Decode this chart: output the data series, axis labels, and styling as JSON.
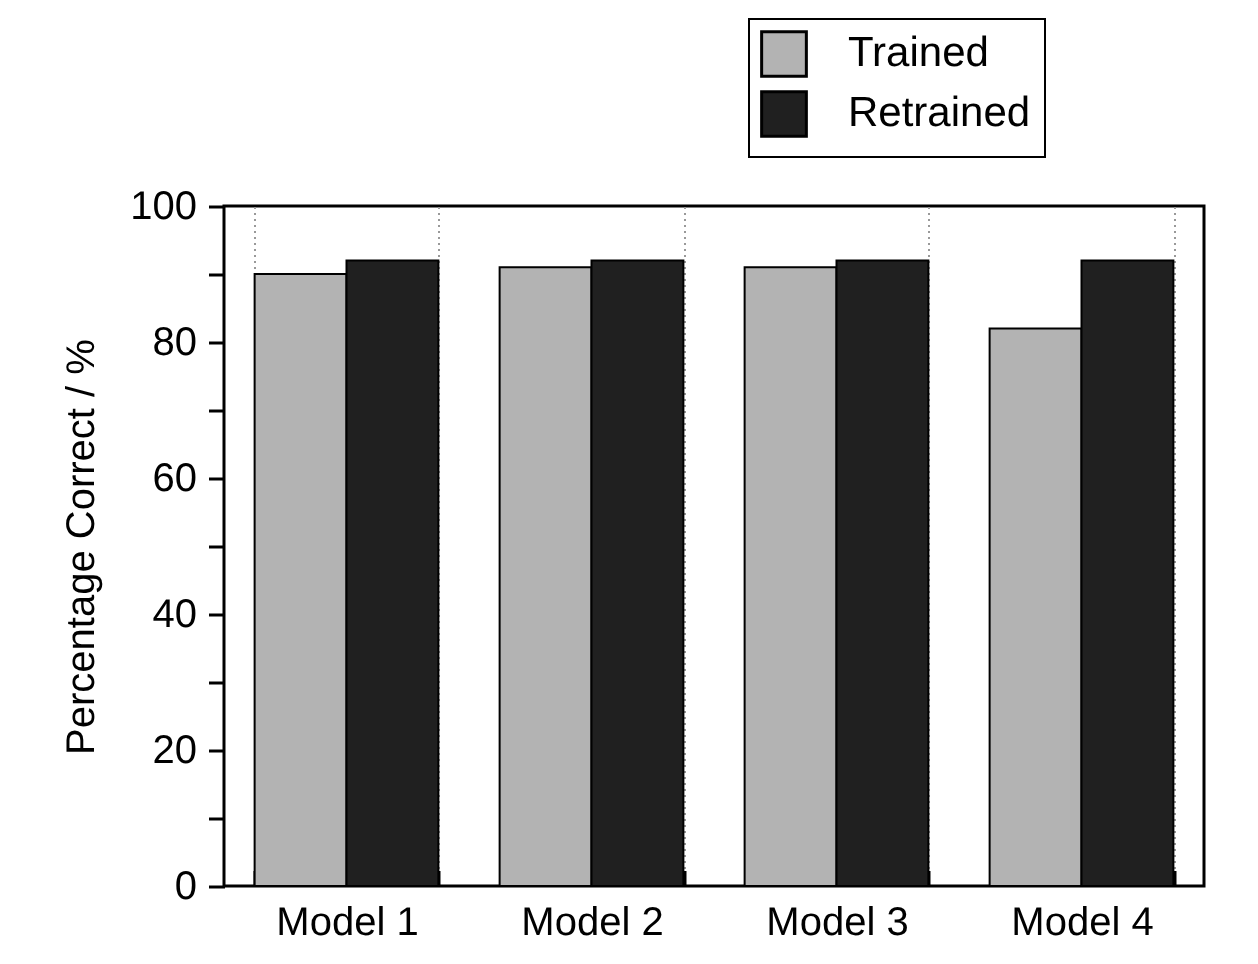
{
  "chart_data": {
    "type": "bar",
    "ylabel": "Percentage Correct / %",
    "categories": [
      "Model 1",
      "Model 2",
      "Model 3",
      "Model 4"
    ],
    "series": [
      {
        "name": "Trained",
        "color": "#b3b3b3",
        "values": [
          90,
          91,
          91,
          82
        ]
      },
      {
        "name": "Retrained",
        "color": "#202020",
        "values": [
          92,
          92,
          92,
          92
        ]
      }
    ],
    "ylim": [
      0,
      100
    ],
    "yticks": [
      0,
      {
        "value": 10,
        "label": null
      },
      20,
      {
        "value": 30,
        "label": null
      },
      40,
      {
        "value": 50,
        "label": null
      },
      60,
      {
        "value": 70,
        "label": null
      },
      80,
      {
        "value": 90,
        "label": null
      },
      100
    ],
    "grid": "x",
    "legend": "top right"
  }
}
